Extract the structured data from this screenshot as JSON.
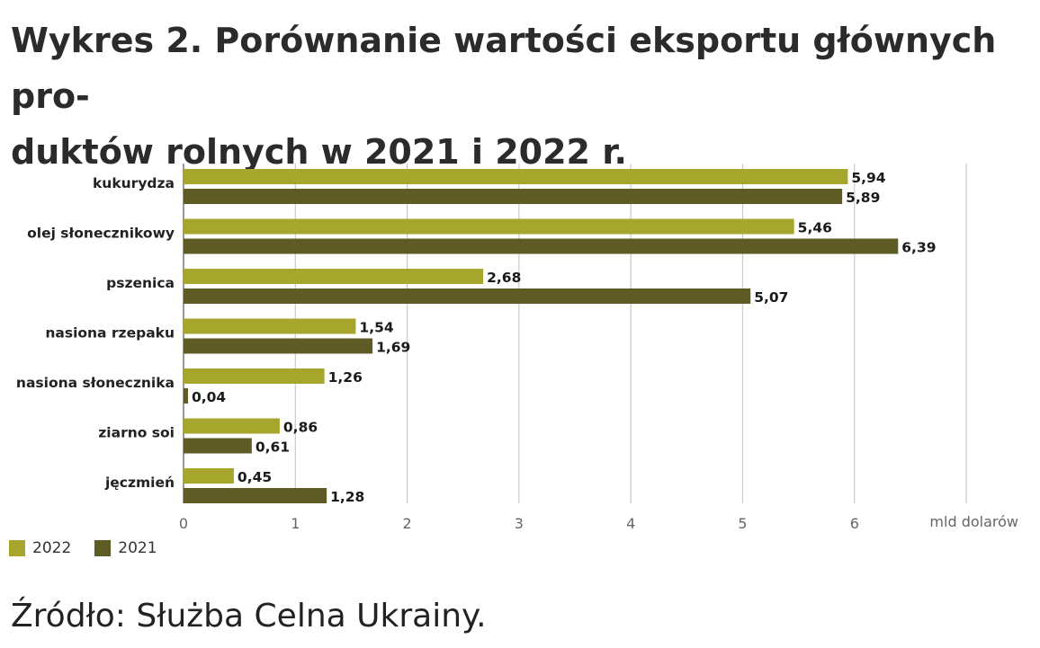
{
  "title_line1": "Wykres 2. Porównanie wartości eksportu głównych pro-",
  "title_line2": "duktów rolnych w 2021 i 2022 r.",
  "source": "Źródło: Służba Celna Ukrainy.",
  "colors": {
    "s2022": "#a5a62b",
    "s2021": "#5e5b25",
    "grid": "#c9c9c9",
    "axis": "#777777"
  },
  "chart_data": {
    "type": "bar",
    "orientation": "horizontal",
    "categories": [
      "kukurydza",
      "olej słonecznikowy",
      "pszenica",
      "nasiona rzepaku",
      "nasiona słonecznika",
      "ziarno soi",
      "jęczmień"
    ],
    "series": [
      {
        "name": "2022",
        "values": [
          5.94,
          5.46,
          2.68,
          1.54,
          1.26,
          0.86,
          0.45
        ],
        "labels": [
          "5,94",
          "5,46",
          "2,68",
          "1,54",
          "1,26",
          "0,86",
          "0,45"
        ]
      },
      {
        "name": "2021",
        "values": [
          5.89,
          6.39,
          5.07,
          1.69,
          0.04,
          0.61,
          1.28
        ],
        "labels": [
          "5,89",
          "6,39",
          "5,07",
          "1,69",
          "0,04",
          "0,61",
          "1,28"
        ]
      }
    ],
    "xlabel": "mld dolarów",
    "xlim": [
      0,
      7
    ],
    "xticks": [
      0,
      1,
      2,
      3,
      4,
      5,
      6
    ],
    "grid": true,
    "legend_position": "bottom-left"
  }
}
